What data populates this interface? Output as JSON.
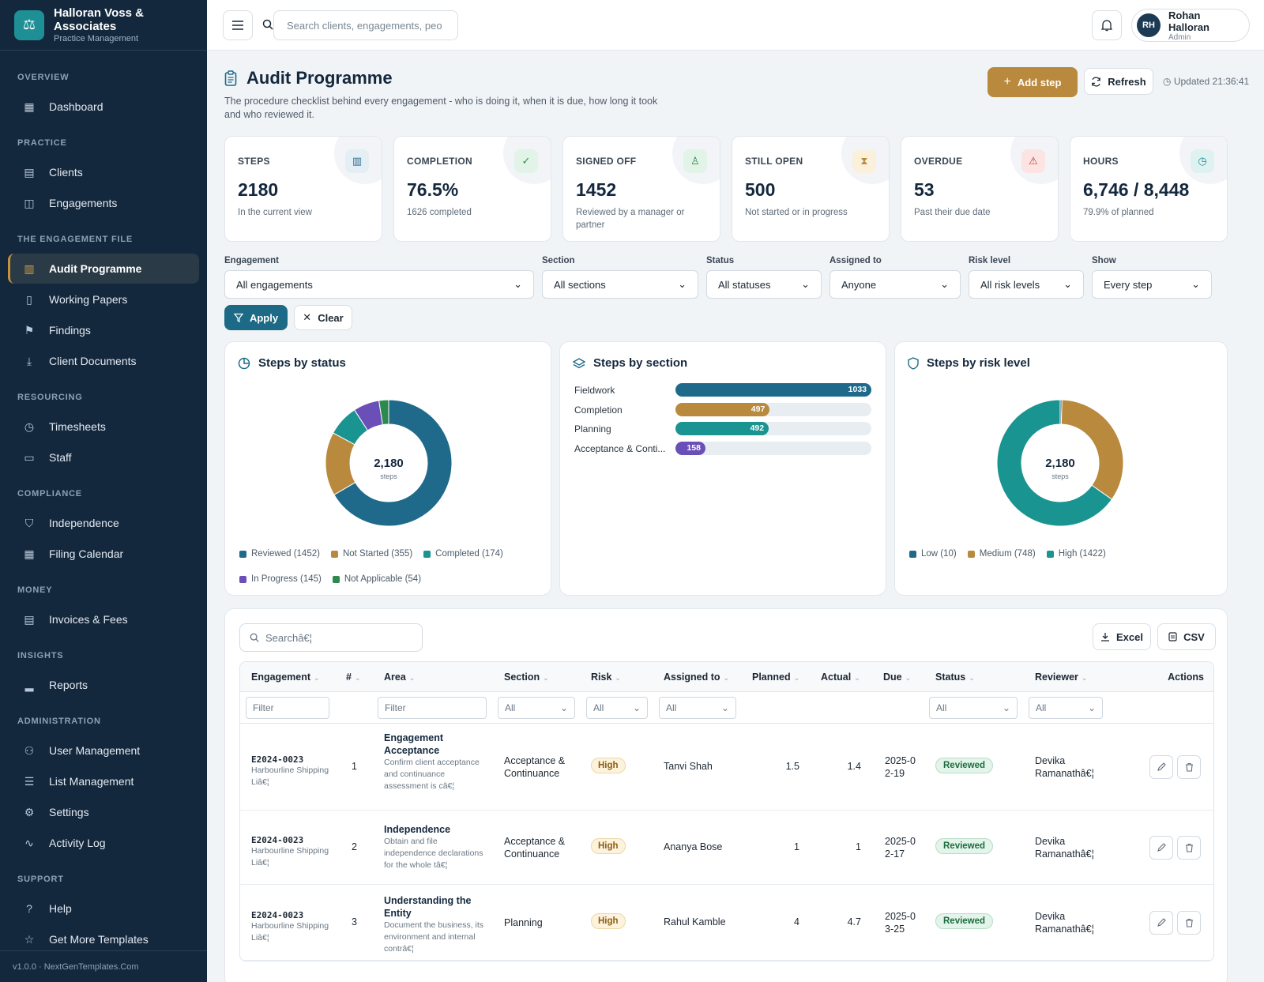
{
  "brand": {
    "name": "Halloran Voss & Associates",
    "sub": "Practice Management"
  },
  "nav": {
    "sections": [
      {
        "label": "OVERVIEW",
        "items": [
          {
            "label": "Dashboard",
            "icon": "grid-icon"
          }
        ]
      },
      {
        "label": "PRACTICE",
        "items": [
          {
            "label": "Clients",
            "icon": "building-icon"
          },
          {
            "label": "Engagements",
            "icon": "briefcase-icon"
          }
        ]
      },
      {
        "label": "THE ENGAGEMENT FILE",
        "items": [
          {
            "label": "Audit Programme",
            "icon": "clipboard-icon",
            "active": true
          },
          {
            "label": "Working Papers",
            "icon": "file-icon"
          },
          {
            "label": "Findings",
            "icon": "flag-icon"
          },
          {
            "label": "Client Documents",
            "icon": "download-doc-icon"
          }
        ]
      },
      {
        "label": "RESOURCING",
        "items": [
          {
            "label": "Timesheets",
            "icon": "clock-icon"
          },
          {
            "label": "Staff",
            "icon": "id-card-icon"
          }
        ]
      },
      {
        "label": "COMPLIANCE",
        "items": [
          {
            "label": "Independence",
            "icon": "shield-icon"
          },
          {
            "label": "Filing Calendar",
            "icon": "calendar-icon"
          }
        ]
      },
      {
        "label": "MONEY",
        "items": [
          {
            "label": "Invoices & Fees",
            "icon": "receipt-icon"
          }
        ]
      },
      {
        "label": "INSIGHTS",
        "items": [
          {
            "label": "Reports",
            "icon": "bar-chart-icon"
          }
        ]
      },
      {
        "label": "ADMINISTRATION",
        "items": [
          {
            "label": "User Management",
            "icon": "user-gear-icon"
          },
          {
            "label": "List Management",
            "icon": "list-icon"
          },
          {
            "label": "Settings",
            "icon": "gear-icon"
          },
          {
            "label": "Activity Log",
            "icon": "activity-icon"
          }
        ]
      },
      {
        "label": "SUPPORT",
        "items": [
          {
            "label": "Help",
            "icon": "help-icon"
          },
          {
            "label": "Get More Templates",
            "icon": "star-icon"
          }
        ]
      }
    ],
    "footer": "v1.0.0 · NextGenTemplates.Com"
  },
  "topbar": {
    "search_placeholder": "Search clients, engagements, peo",
    "user_name": "Rohan Halloran",
    "user_role": "Admin",
    "user_initials": "RH"
  },
  "page": {
    "title": "Audit Programme",
    "description": "The procedure checklist behind every engagement - who is doing it, when it is due, how long it took and who reviewed it.",
    "add_label": "Add step",
    "refresh_label": "Refresh",
    "updated": "Updated 21:36:41"
  },
  "kpis": [
    {
      "label": "STEPS",
      "value": "2180",
      "sub": "In the current view",
      "icon": "clipboard-icon",
      "color": "#2d6f8f",
      "bg": "#e3eff5"
    },
    {
      "label": "COMPLETION",
      "value": "76.5%",
      "sub": "1626 completed",
      "icon": "check-circle-icon",
      "color": "#2f8a4f",
      "bg": "#e2f3e8"
    },
    {
      "label": "SIGNED OFF",
      "value": "1452",
      "sub": "Reviewed by a manager or partner",
      "icon": "stamp-icon",
      "color": "#2f8a4f",
      "bg": "#e2f3e8"
    },
    {
      "label": "STILL OPEN",
      "value": "500",
      "sub": "Not started or in progress",
      "icon": "hourglass-icon",
      "color": "#b9893d",
      "bg": "#fbf0dc"
    },
    {
      "label": "OVERDUE",
      "value": "53",
      "sub": "Past their due date",
      "icon": "warning-icon",
      "color": "#c0392b",
      "bg": "#fbe4e1"
    },
    {
      "label": "HOURS",
      "value": "6,746 / 8,448",
      "sub": "79.9% of planned",
      "icon": "clock-icon",
      "color": "#1f8f96",
      "bg": "#def2f2"
    }
  ],
  "filters": {
    "engagement": {
      "label": "Engagement",
      "value": "All engagements"
    },
    "section": {
      "label": "Section",
      "value": "All sections"
    },
    "status": {
      "label": "Status",
      "value": "All statuses"
    },
    "assigned": {
      "label": "Assigned to",
      "value": "Anyone"
    },
    "risk": {
      "label": "Risk level",
      "value": "All risk levels"
    },
    "show": {
      "label": "Show",
      "value": "Every step"
    },
    "apply_label": "Apply",
    "clear_label": "Clear"
  },
  "chart_data": [
    {
      "type": "pie",
      "title": "Steps by status",
      "center_value": "2,180",
      "center_label": "steps",
      "categories": [
        "Reviewed",
        "Not Started",
        "Completed",
        "In Progress",
        "Not Applicable"
      ],
      "values": [
        1452,
        355,
        174,
        145,
        54
      ],
      "legend": [
        "Reviewed (1452)",
        "Not Started (355)",
        "Completed (174)",
        "In Progress (145)",
        "Not Applicable (54)"
      ],
      "colors": [
        "#1f6a8a",
        "#b9893d",
        "#1a9490",
        "#6a4fb8",
        "#2d8a4f"
      ]
    },
    {
      "type": "bar",
      "orientation": "horizontal",
      "title": "Steps by section",
      "categories": [
        "Fieldwork",
        "Completion",
        "Planning",
        "Acceptance & Conti..."
      ],
      "values": [
        1033,
        497,
        492,
        158
      ],
      "colors": [
        "#1f6a8a",
        "#b9893d",
        "#1a9490",
        "#6a4fb8"
      ],
      "xlim": [
        0,
        1033
      ]
    },
    {
      "type": "pie",
      "title": "Steps by risk level",
      "center_value": "2,180",
      "center_label": "steps",
      "categories": [
        "Low",
        "Medium",
        "High"
      ],
      "values": [
        10,
        748,
        1422
      ],
      "legend": [
        "Low (10)",
        "Medium (748)",
        "High (1422)"
      ],
      "colors": [
        "#1f6a8a",
        "#b9893d",
        "#1a9490"
      ]
    }
  ],
  "table": {
    "search_placeholder": "Searchâ€¦",
    "excel_label": "Excel",
    "csv_label": "CSV",
    "columns": [
      "Engagement",
      "#",
      "Area",
      "Section",
      "Risk",
      "Assigned to",
      "Planned",
      "Actual",
      "Due",
      "Status",
      "Reviewer",
      "Actions"
    ],
    "filter_text": "Filter",
    "filter_all": "All",
    "rows": [
      {
        "code": "E2024-0023",
        "client": "Harbourline Shipping Liâ€¦",
        "num": "1",
        "area": "Engagement Acceptance",
        "desc": "Confirm client acceptance and continuance assessment is câ€¦",
        "section": "Acceptance & Continuance",
        "risk": "High",
        "assigned": "Tanvi Shah",
        "planned": "1.5",
        "actual": "1.4",
        "due": "2025-02-19",
        "status": "Reviewed",
        "reviewer": "Devika Ramanathâ€¦"
      },
      {
        "code": "E2024-0023",
        "client": "Harbourline Shipping Liâ€¦",
        "num": "2",
        "area": "Independence",
        "desc": "Obtain and file independence declarations for the whole tâ€¦",
        "section": "Acceptance & Continuance",
        "risk": "High",
        "assigned": "Ananya Bose",
        "planned": "1",
        "actual": "1",
        "due": "2025-02-17",
        "status": "Reviewed",
        "reviewer": "Devika Ramanathâ€¦"
      },
      {
        "code": "E2024-0023",
        "client": "Harbourline Shipping Liâ€¦",
        "num": "3",
        "area": "Understanding the Entity",
        "desc": "Document the business, its environment and internal contrâ€¦",
        "section": "Planning",
        "risk": "High",
        "assigned": "Rahul Kamble",
        "planned": "4",
        "actual": "4.7",
        "due": "2025-03-25",
        "status": "Reviewed",
        "reviewer": "Devika Ramanathâ€¦"
      }
    ]
  }
}
